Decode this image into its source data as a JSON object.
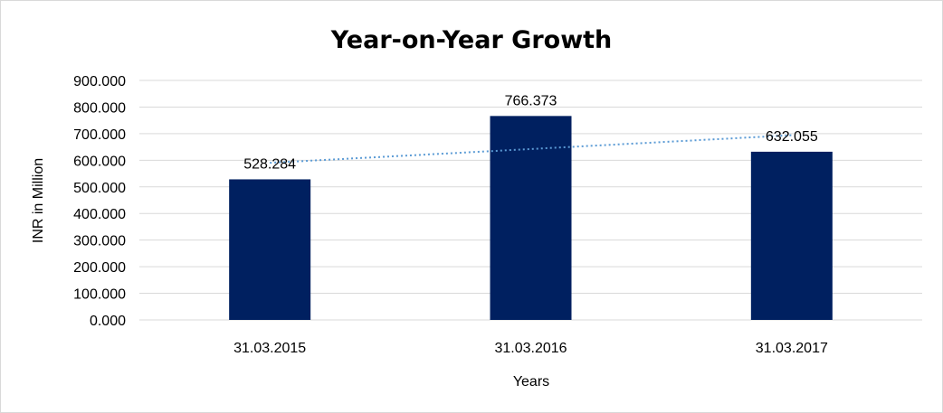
{
  "chart_data": {
    "type": "bar",
    "title": "Year-on-Year Growth",
    "xlabel": "Years",
    "ylabel": "INR in Million",
    "categories": [
      "31.03.2015",
      "31.03.2016",
      "31.03.2017"
    ],
    "values": [
      528.284,
      766.373,
      632.055
    ],
    "value_labels": [
      "528.284",
      "766.373",
      "632.055"
    ],
    "yticks": [
      "0.000",
      "100.000",
      "200.000",
      "300.000",
      "400.000",
      "500.000",
      "600.000",
      "700.000",
      "800.000",
      "900.000"
    ],
    "ylim": [
      0,
      900
    ],
    "grid": true,
    "legend": "none",
    "trendline": "linear",
    "bar_color": "#002060",
    "trend_color": "#5b9bd5"
  }
}
